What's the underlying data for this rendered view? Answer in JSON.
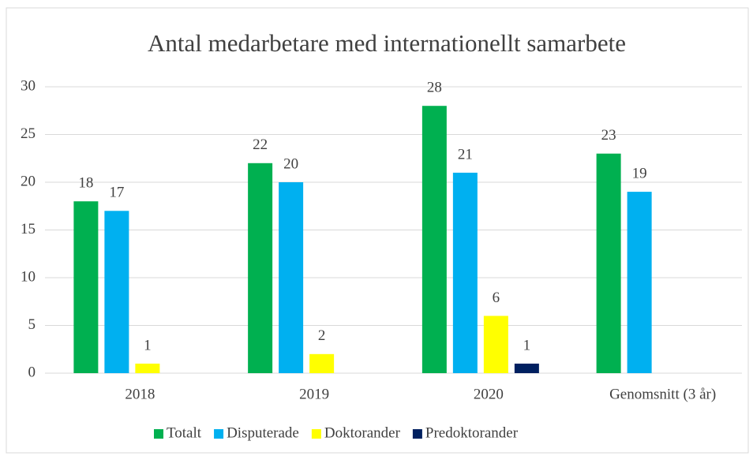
{
  "chart_data": {
    "type": "bar",
    "title": "Antal medarbetare med internationellt samarbete",
    "categories": [
      "2018",
      "2019",
      "2020",
      "Genomsnitt (3 år)"
    ],
    "series": [
      {
        "name": "Totalt",
        "color": "#00b050",
        "values": [
          18,
          22,
          28,
          23
        ]
      },
      {
        "name": "Disputerade",
        "color": "#00b0f0",
        "values": [
          17,
          20,
          21,
          19
        ]
      },
      {
        "name": "Doktorander",
        "color": "#ffff00",
        "values": [
          1,
          2,
          6,
          null
        ]
      },
      {
        "name": "Predoktorander",
        "color": "#002060",
        "values": [
          null,
          null,
          1,
          null
        ]
      }
    ],
    "ylim": [
      0,
      30
    ],
    "yticks": [
      0,
      5,
      10,
      15,
      20,
      25,
      30
    ],
    "grid": true,
    "legend": "bottom"
  }
}
